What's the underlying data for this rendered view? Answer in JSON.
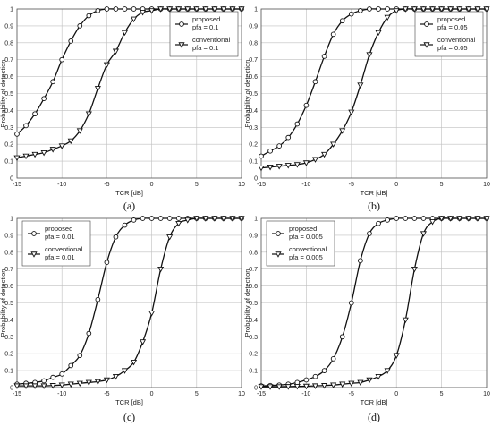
{
  "chart_data": [
    {
      "type": "line",
      "caption": "(a)",
      "xlabel": "TCR [dB]",
      "ylabel": "Probability of detection",
      "xlim": [
        -15,
        10
      ],
      "ylim": [
        0,
        1
      ],
      "xticks": [
        -15,
        -10,
        -5,
        0,
        5,
        10
      ],
      "yticks": [
        0,
        0.1,
        0.2,
        0.3,
        0.4,
        0.5,
        0.6,
        0.7,
        0.8,
        0.9,
        1
      ],
      "grid": true,
      "legend_position": "top-right",
      "x": [
        -15,
        -14,
        -13,
        -12,
        -11,
        -10,
        -9,
        -8,
        -7,
        -6,
        -5,
        -4,
        -3,
        -2,
        -1,
        0,
        1,
        2,
        3,
        4,
        5,
        6,
        7,
        8,
        9,
        10
      ],
      "series": [
        {
          "name": "proposed",
          "sub": "pfa = 0.1",
          "marker": "circle",
          "values": [
            0.26,
            0.31,
            0.38,
            0.47,
            0.57,
            0.7,
            0.81,
            0.9,
            0.96,
            0.99,
            1.0,
            1.0,
            1.0,
            1.0,
            1.0,
            1.0,
            1.0,
            1.0,
            1.0,
            1.0,
            1.0,
            1.0,
            1.0,
            1.0,
            1.0,
            1.0
          ]
        },
        {
          "name": "conventional",
          "sub": "pfa = 0.1",
          "marker": "triangle",
          "values": [
            0.12,
            0.13,
            0.14,
            0.15,
            0.17,
            0.19,
            0.22,
            0.28,
            0.38,
            0.53,
            0.67,
            0.75,
            0.86,
            0.94,
            0.98,
            0.99,
            1.0,
            1.0,
            1.0,
            1.0,
            1.0,
            1.0,
            1.0,
            1.0,
            1.0,
            1.0
          ]
        }
      ]
    },
    {
      "type": "line",
      "caption": "(b)",
      "xlabel": "TCR [dB]",
      "ylabel": "Probability of detection",
      "xlim": [
        -15,
        10
      ],
      "ylim": [
        0,
        1
      ],
      "xticks": [
        -15,
        -10,
        -5,
        0,
        5,
        10
      ],
      "yticks": [
        0,
        0.1,
        0.2,
        0.3,
        0.4,
        0.5,
        0.6,
        0.7,
        0.8,
        0.9,
        1
      ],
      "grid": true,
      "legend_position": "top-right",
      "x": [
        -15,
        -14,
        -13,
        -12,
        -11,
        -10,
        -9,
        -8,
        -7,
        -6,
        -5,
        -4,
        -3,
        -2,
        -1,
        0,
        1,
        2,
        3,
        4,
        5,
        6,
        7,
        8,
        9,
        10
      ],
      "series": [
        {
          "name": "proposed",
          "sub": "pfa = 0.05",
          "marker": "circle",
          "values": [
            0.13,
            0.16,
            0.19,
            0.24,
            0.32,
            0.43,
            0.57,
            0.72,
            0.85,
            0.93,
            0.97,
            0.99,
            1.0,
            1.0,
            1.0,
            1.0,
            1.0,
            1.0,
            1.0,
            1.0,
            1.0,
            1.0,
            1.0,
            1.0,
            1.0,
            1.0
          ]
        },
        {
          "name": "conventional",
          "sub": "pfa = 0.05",
          "marker": "triangle",
          "values": [
            0.06,
            0.065,
            0.07,
            0.075,
            0.08,
            0.09,
            0.11,
            0.14,
            0.2,
            0.28,
            0.39,
            0.55,
            0.73,
            0.86,
            0.95,
            0.99,
            1.0,
            1.0,
            1.0,
            1.0,
            1.0,
            1.0,
            1.0,
            1.0,
            1.0,
            1.0
          ]
        }
      ]
    },
    {
      "type": "line",
      "caption": "(c)",
      "xlabel": "TCR [dB]",
      "ylabel": "Probability of detection",
      "xlim": [
        -15,
        10
      ],
      "ylim": [
        0,
        1
      ],
      "xticks": [
        -15,
        -10,
        -5,
        0,
        5,
        10
      ],
      "yticks": [
        0,
        0.1,
        0.2,
        0.3,
        0.4,
        0.5,
        0.6,
        0.7,
        0.8,
        0.9,
        1
      ],
      "grid": true,
      "legend_position": "top-left",
      "x": [
        -15,
        -14,
        -13,
        -12,
        -11,
        -10,
        -9,
        -8,
        -7,
        -6,
        -5,
        -4,
        -3,
        -2,
        -1,
        0,
        1,
        2,
        3,
        4,
        5,
        6,
        7,
        8,
        9,
        10
      ],
      "series": [
        {
          "name": "proposed",
          "sub": "pfa = 0.01",
          "marker": "circle",
          "values": [
            0.02,
            0.025,
            0.03,
            0.04,
            0.06,
            0.08,
            0.13,
            0.19,
            0.32,
            0.52,
            0.74,
            0.89,
            0.96,
            0.99,
            1.0,
            1.0,
            1.0,
            1.0,
            1.0,
            1.0,
            1.0,
            1.0,
            1.0,
            1.0,
            1.0,
            1.0
          ]
        },
        {
          "name": "conventional",
          "sub": "pfa = 0.01",
          "marker": "triangle",
          "values": [
            0.01,
            0.01,
            0.01,
            0.01,
            0.012,
            0.015,
            0.02,
            0.025,
            0.03,
            0.035,
            0.045,
            0.065,
            0.1,
            0.15,
            0.27,
            0.44,
            0.7,
            0.89,
            0.97,
            0.99,
            1.0,
            1.0,
            1.0,
            1.0,
            1.0,
            1.0
          ]
        }
      ]
    },
    {
      "type": "line",
      "caption": "(d)",
      "xlabel": "TCR [dB]",
      "ylabel": "Probability of detection",
      "xlim": [
        -15,
        10
      ],
      "ylim": [
        0,
        1
      ],
      "xticks": [
        -15,
        -10,
        -5,
        0,
        5,
        10
      ],
      "yticks": [
        0,
        0.1,
        0.2,
        0.3,
        0.4,
        0.5,
        0.6,
        0.7,
        0.8,
        0.9,
        1
      ],
      "grid": true,
      "legend_position": "top-left",
      "x": [
        -15,
        -14,
        -13,
        -12,
        -11,
        -10,
        -9,
        -8,
        -7,
        -6,
        -5,
        -4,
        -3,
        -2,
        -1,
        0,
        1,
        2,
        3,
        4,
        5,
        6,
        7,
        8,
        9,
        10
      ],
      "series": [
        {
          "name": "proposed",
          "sub": "pfa = 0.005",
          "marker": "circle",
          "values": [
            0.01,
            0.012,
            0.015,
            0.02,
            0.03,
            0.045,
            0.065,
            0.1,
            0.17,
            0.3,
            0.5,
            0.75,
            0.91,
            0.97,
            0.99,
            1.0,
            1.0,
            1.0,
            1.0,
            1.0,
            1.0,
            1.0,
            1.0,
            1.0,
            1.0,
            1.0
          ]
        },
        {
          "name": "conventional",
          "sub": "pfa = 0.005",
          "marker": "triangle",
          "values": [
            0.005,
            0.005,
            0.005,
            0.006,
            0.007,
            0.008,
            0.01,
            0.012,
            0.015,
            0.02,
            0.025,
            0.03,
            0.045,
            0.065,
            0.1,
            0.19,
            0.4,
            0.7,
            0.91,
            0.98,
            1.0,
            1.0,
            1.0,
            1.0,
            1.0,
            1.0
          ]
        }
      ]
    }
  ]
}
